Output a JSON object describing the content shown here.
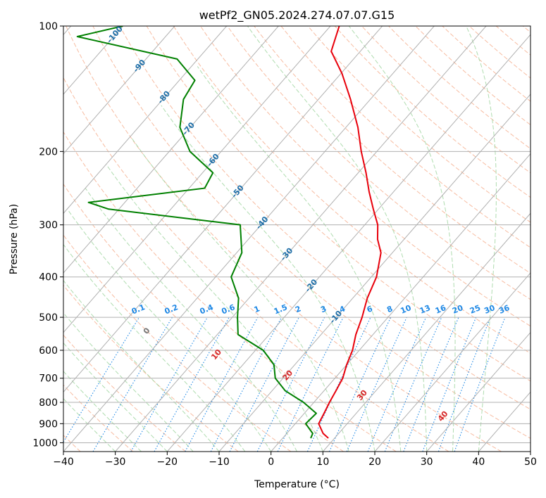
{
  "chart_data": {
    "type": "line",
    "diagram": "skew-t log-p",
    "title": "wetPf2_GN05.2024.274.07.07.G15",
    "xlabel": "Temperature (°C)",
    "ylabel": "Pressure (hPa)",
    "xlim": [
      -40,
      50
    ],
    "ylim": [
      1050,
      100
    ],
    "yscale": "log",
    "grid": true,
    "x_ticks": [
      -40,
      -30,
      -20,
      -10,
      0,
      10,
      20,
      30,
      40,
      50
    ],
    "x_tick_labels": [
      "−40",
      "−30",
      "−20",
      "−10",
      "0",
      "10",
      "20",
      "30",
      "40",
      "50"
    ],
    "y_ticks": [
      100,
      200,
      300,
      400,
      500,
      600,
      700,
      800,
      900,
      1000
    ],
    "y_tick_labels": [
      "100",
      "200",
      "300",
      "400",
      "500",
      "600",
      "700",
      "800",
      "900",
      "1000"
    ],
    "colors": {
      "temperature": "#e8000b",
      "dewpoint": "#008000",
      "isotherm": "#b0b0b0",
      "dry_adiabat": "#f4a582",
      "moist_adiabat": "#a6d8a6",
      "mixing_ratio": "#1e88e5",
      "isotherm_label": "#1f6fa8",
      "dry_adiabat_label": "#d62728"
    },
    "series": [
      {
        "name": "",
        "color": "#e8000b",
        "points": [
          [
            8.8,
            975
          ],
          [
            7.0,
            950
          ],
          [
            4.5,
            900
          ],
          [
            3.8,
            850
          ],
          [
            3.0,
            800
          ],
          [
            2.3,
            750
          ],
          [
            1.5,
            700
          ],
          [
            0.0,
            650
          ],
          [
            -1.3,
            600
          ],
          [
            -3.3,
            550
          ],
          [
            -5.0,
            500
          ],
          [
            -7.2,
            450
          ],
          [
            -9.0,
            400
          ],
          [
            -12.2,
            350
          ],
          [
            -15.1,
            325
          ],
          [
            -17.5,
            300
          ],
          [
            -21.0,
            275
          ],
          [
            -24.7,
            250
          ],
          [
            -28.5,
            225
          ],
          [
            -33.0,
            200
          ],
          [
            -37.7,
            175
          ],
          [
            -43.8,
            150
          ],
          [
            -49.8,
            130
          ],
          [
            -55.6,
            115
          ],
          [
            -58.3,
            100
          ]
        ]
      },
      {
        "name": "",
        "color": "#008000",
        "points": [
          [
            5.4,
            975
          ],
          [
            5.0,
            950
          ],
          [
            2.0,
            900
          ],
          [
            2.3,
            850
          ],
          [
            -2.0,
            800
          ],
          [
            -7.5,
            750
          ],
          [
            -11.5,
            700
          ],
          [
            -14.0,
            650
          ],
          [
            -18.5,
            600
          ],
          [
            -26.0,
            550
          ],
          [
            -29.0,
            500
          ],
          [
            -32.0,
            450
          ],
          [
            -37.0,
            400
          ],
          [
            -39.0,
            350
          ],
          [
            -44.0,
            300
          ],
          [
            -72.0,
            275
          ],
          [
            -77.0,
            265
          ],
          [
            -57.0,
            245
          ],
          [
            -58.0,
            225
          ],
          [
            -66.0,
            200
          ],
          [
            -72.0,
            175
          ],
          [
            -76.0,
            150
          ],
          [
            -77.0,
            135
          ],
          [
            -84.0,
            120
          ],
          [
            -107.0,
            106
          ],
          [
            -100.0,
            100
          ]
        ]
      }
    ],
    "isotherm_labels": [
      "-100",
      "-90",
      "-80",
      "-70",
      "-60",
      "-50",
      "-40",
      "-30",
      "-20",
      "-10"
    ],
    "isotherm_label_values": [
      -100,
      -90,
      -80,
      -70,
      -60,
      -50,
      -40,
      -30,
      -20,
      -10
    ],
    "mixing_ratio_labels": [
      "0.1",
      "0.2",
      "0.4",
      "0.6",
      "1",
      "1.5",
      "2",
      "3",
      "4",
      "6",
      "8",
      "10",
      "13",
      "16",
      "20",
      "25",
      "30",
      "36"
    ],
    "mixing_ratio_values": [
      0.1,
      0.2,
      0.4,
      0.6,
      1,
      1.5,
      2,
      3,
      4,
      6,
      8,
      10,
      13,
      16,
      20,
      25,
      30,
      36
    ],
    "dry_adiabat_labels": [
      "0",
      "10",
      "20",
      "30",
      "40"
    ],
    "dry_adiabat_label_values": [
      0,
      10,
      20,
      30,
      40
    ]
  }
}
